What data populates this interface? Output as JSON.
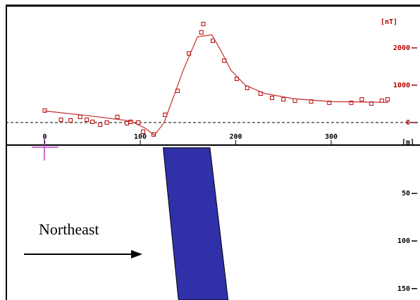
{
  "chart_data": [
    {
      "type": "profile",
      "unit_label": "[nT]",
      "x_unit_label": "[m]",
      "xlim": [
        -41,
        393
      ],
      "ylim": [
        -585,
        3132
      ],
      "xticks": [
        0,
        100,
        200,
        300
      ],
      "yticks": [
        0,
        1000,
        2000
      ],
      "zero_line": true,
      "series": [
        {
          "style": "markers",
          "color": "#b80000",
          "x": [
            0,
            17,
            27,
            37,
            44,
            50,
            58,
            65,
            76,
            86,
            90,
            98,
            103,
            114,
            126,
            139,
            151,
            164,
            166,
            176,
            188,
            201,
            212,
            226,
            238,
            250,
            262,
            279,
            298,
            321,
            332,
            342,
            353,
            359
          ],
          "values": [
            320,
            75,
            57,
            150,
            75,
            19,
            -57,
            0,
            150,
            -19,
            19,
            0,
            -245,
            -320,
            208,
            850,
            1850,
            2415,
            2640,
            2190,
            1660,
            1170,
            925,
            775,
            660,
            620,
            585,
            565,
            530,
            530,
            620,
            510,
            585,
            620
          ]
        },
        {
          "style": "line",
          "color": "#c83c3c",
          "x": [
            0,
            50,
            90,
            105,
            115,
            125,
            135,
            145,
            160,
            175,
            185,
            195,
            210,
            230,
            260,
            300,
            360
          ],
          "values": [
            310,
            170,
            40,
            -150,
            -340,
            0,
            700,
            1400,
            2300,
            2350,
            1900,
            1400,
            1000,
            780,
            640,
            560,
            540
          ]
        }
      ]
    },
    {
      "type": "section",
      "xlim": [
        -41,
        393
      ],
      "ylim": [
        0,
        162
      ],
      "yticks": [
        50,
        100,
        150
      ],
      "annotation": "Northeast",
      "body": {
        "color": "#3c3cc8",
        "x": [
          124,
          173,
          192,
          140
        ],
        "values": [
          2,
          2,
          162,
          162
        ]
      }
    }
  ]
}
